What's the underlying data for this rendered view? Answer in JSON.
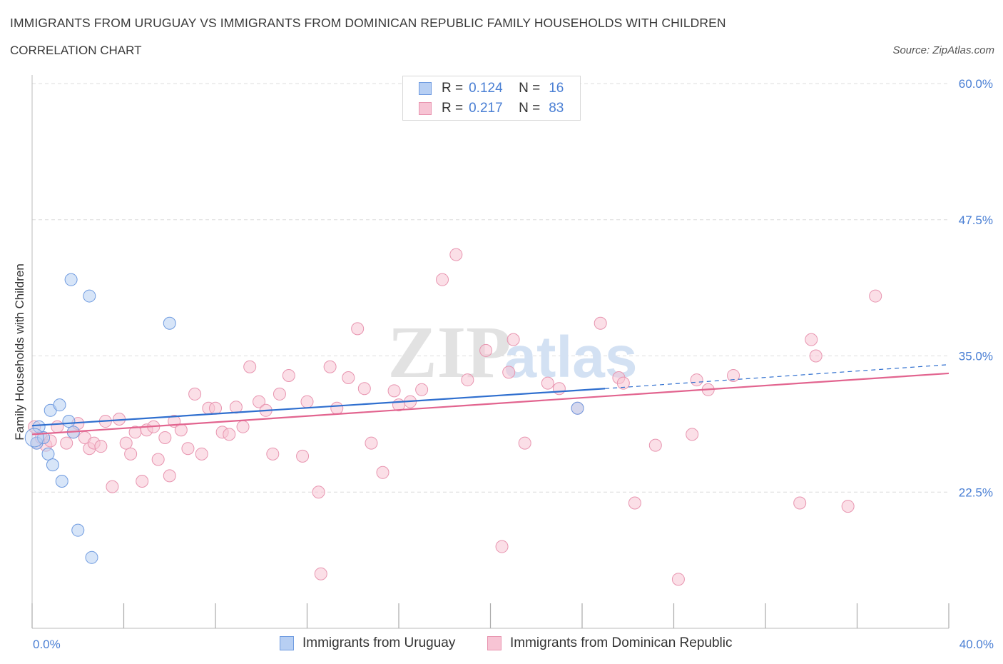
{
  "title": "IMMIGRANTS FROM URUGUAY VS IMMIGRANTS FROM DOMINICAN REPUBLIC FAMILY HOUSEHOLDS WITH CHILDREN",
  "subtitle": "CORRELATION CHART",
  "source": "Source: ZipAtlas.com",
  "watermark": {
    "zip": "ZIP",
    "atlas": "atlas"
  },
  "legend": {
    "r_label": "R =",
    "n_label": "N =",
    "rows": [
      {
        "r": "0.124",
        "n": "16"
      },
      {
        "r": "0.217",
        "n": "83"
      }
    ]
  },
  "colors": {
    "uruguay_fill": "#b7cff3",
    "uruguay_stroke": "#6f9be0",
    "uruguay_line": "#2f6fcf",
    "dominican_fill": "#f7c4d4",
    "dominican_stroke": "#e895b0",
    "dominican_line": "#e2648f",
    "tick_text": "#4a7fd4",
    "grid": "#dcdcdc"
  },
  "chart_data": {
    "type": "scatter",
    "title": "IMMIGRANTS FROM URUGUAY VS IMMIGRANTS FROM DOMINICAN REPUBLIC FAMILY HOUSEHOLDS WITH CHILDREN",
    "xlabel": "",
    "ylabel": "Family Households with Children",
    "xlim": [
      0,
      40
    ],
    "ylim": [
      10,
      60
    ],
    "x_tick_labels": [
      "0.0%",
      "40.0%"
    ],
    "y_ticks": [
      22.5,
      35.0,
      47.5,
      60.0
    ],
    "y_tick_labels": [
      "22.5%",
      "35.0%",
      "47.5%",
      "60.0%"
    ],
    "grid": true,
    "legend_position": "top-center",
    "series": [
      {
        "name": "Immigrants from Uruguay",
        "r": 0.124,
        "n": 16,
        "points": [
          [
            0.2,
            27.0
          ],
          [
            0.3,
            28.5
          ],
          [
            0.5,
            27.5
          ],
          [
            0.7,
            26.0
          ],
          [
            0.8,
            30.0
          ],
          [
            0.9,
            25.0
          ],
          [
            1.2,
            30.5
          ],
          [
            1.3,
            23.5
          ],
          [
            1.6,
            29.0
          ],
          [
            1.7,
            42.0
          ],
          [
            1.8,
            28.0
          ],
          [
            2.0,
            19.0
          ],
          [
            2.5,
            40.5
          ],
          [
            2.6,
            16.5
          ],
          [
            6.0,
            38.0
          ],
          [
            23.8,
            30.2
          ]
        ],
        "trend": {
          "x": [
            0,
            25
          ],
          "y": [
            28.6,
            32.0
          ],
          "dashed_to": [
            40,
            34.2
          ]
        }
      },
      {
        "name": "Immigrants from Dominican Republic",
        "r": 0.217,
        "n": 83,
        "points": [
          [
            0.1,
            28.5
          ],
          [
            0.2,
            27.0
          ],
          [
            0.4,
            27.5
          ],
          [
            0.6,
            26.8
          ],
          [
            0.8,
            27.2
          ],
          [
            1.1,
            28.5
          ],
          [
            1.5,
            27.0
          ],
          [
            1.8,
            28.0
          ],
          [
            2.0,
            28.8
          ],
          [
            2.3,
            27.5
          ],
          [
            2.5,
            26.5
          ],
          [
            2.7,
            27.0
          ],
          [
            3.0,
            26.7
          ],
          [
            3.2,
            29.0
          ],
          [
            3.5,
            23.0
          ],
          [
            3.8,
            29.2
          ],
          [
            4.1,
            27.0
          ],
          [
            4.3,
            26.0
          ],
          [
            4.5,
            28.0
          ],
          [
            4.8,
            23.5
          ],
          [
            5.0,
            28.2
          ],
          [
            5.3,
            28.5
          ],
          [
            5.5,
            25.5
          ],
          [
            5.8,
            27.5
          ],
          [
            6.0,
            24.0
          ],
          [
            6.2,
            29.0
          ],
          [
            6.5,
            28.2
          ],
          [
            6.8,
            26.5
          ],
          [
            7.1,
            31.5
          ],
          [
            7.4,
            26.0
          ],
          [
            7.7,
            30.2
          ],
          [
            8.0,
            30.2
          ],
          [
            8.3,
            28.0
          ],
          [
            8.6,
            27.8
          ],
          [
            8.9,
            30.3
          ],
          [
            9.2,
            28.5
          ],
          [
            9.5,
            34.0
          ],
          [
            9.9,
            30.8
          ],
          [
            10.2,
            30.0
          ],
          [
            10.5,
            26.0
          ],
          [
            10.8,
            31.5
          ],
          [
            11.2,
            33.2
          ],
          [
            11.8,
            25.8
          ],
          [
            12.0,
            30.8
          ],
          [
            12.5,
            22.5
          ],
          [
            12.6,
            15.0
          ],
          [
            13.0,
            34.0
          ],
          [
            13.3,
            30.2
          ],
          [
            13.8,
            33.0
          ],
          [
            14.2,
            37.5
          ],
          [
            14.5,
            32.0
          ],
          [
            14.8,
            27.0
          ],
          [
            15.3,
            24.3
          ],
          [
            15.8,
            31.8
          ],
          [
            16.0,
            30.5
          ],
          [
            16.5,
            30.8
          ],
          [
            17.0,
            31.9
          ],
          [
            17.9,
            42.0
          ],
          [
            18.5,
            44.3
          ],
          [
            19.0,
            32.8
          ],
          [
            19.8,
            35.5
          ],
          [
            20.5,
            17.5
          ],
          [
            20.8,
            33.5
          ],
          [
            21.0,
            36.5
          ],
          [
            21.5,
            27.0
          ],
          [
            22.5,
            32.5
          ],
          [
            23.0,
            32.0
          ],
          [
            23.8,
            30.2
          ],
          [
            24.8,
            38.0
          ],
          [
            25.6,
            33.0
          ],
          [
            25.8,
            32.5
          ],
          [
            26.3,
            21.5
          ],
          [
            27.2,
            26.8
          ],
          [
            28.2,
            14.5
          ],
          [
            28.8,
            27.8
          ],
          [
            29.0,
            32.8
          ],
          [
            29.5,
            31.9
          ],
          [
            30.6,
            33.2
          ],
          [
            33.5,
            21.5
          ],
          [
            34.0,
            36.5
          ],
          [
            34.2,
            35.0
          ],
          [
            35.6,
            21.2
          ],
          [
            36.8,
            40.5
          ]
        ],
        "trend": {
          "x": [
            0,
            40
          ],
          "y": [
            27.8,
            33.4
          ]
        }
      }
    ]
  }
}
